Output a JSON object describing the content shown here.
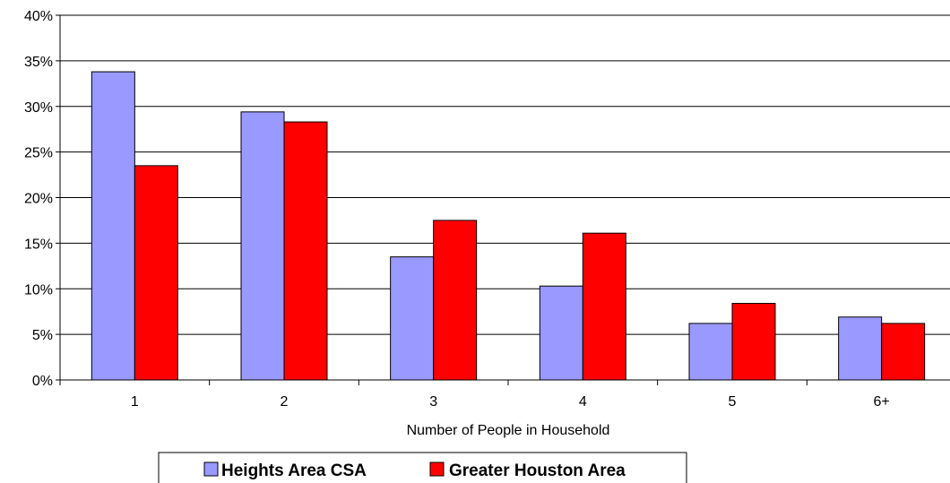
{
  "chart_data": {
    "type": "bar",
    "title": "",
    "xlabel": "Number of People in Household",
    "ylabel": "",
    "categories": [
      "1",
      "2",
      "3",
      "4",
      "5",
      "6+"
    ],
    "series": [
      {
        "name": "Heights Area CSA",
        "color": "#9999ff",
        "values": [
          33.8,
          29.4,
          13.5,
          10.3,
          6.2,
          6.9
        ]
      },
      {
        "name": "Greater Houston Area",
        "color": "#ff0000",
        "values": [
          23.5,
          28.3,
          17.5,
          16.1,
          8.4,
          6.2
        ]
      }
    ],
    "ylim": [
      0,
      40
    ],
    "yticks": [
      {
        "value": 0,
        "label": "0%"
      },
      {
        "value": 5,
        "label": "5%"
      },
      {
        "value": 10,
        "label": "10%"
      },
      {
        "value": 15,
        "label": "15%"
      },
      {
        "value": 20,
        "label": "20%"
      },
      {
        "value": 25,
        "label": "25%"
      },
      {
        "value": 30,
        "label": "30%"
      },
      {
        "value": 35,
        "label": "35%"
      },
      {
        "value": 40,
        "label": "40%"
      }
    ],
    "grid": true,
    "legend_position": "bottom"
  }
}
